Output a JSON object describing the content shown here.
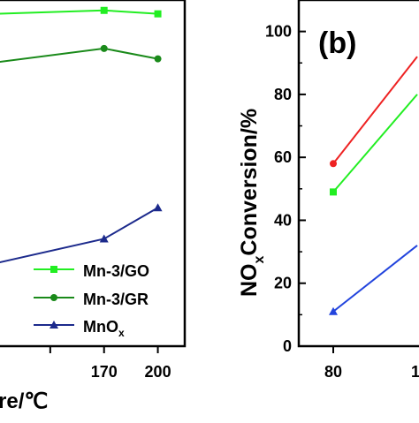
{
  "chart_data": [
    {
      "type": "line",
      "panel_label": "",
      "xlabel_visible": "re/℃",
      "ylabel": "",
      "x_ticks": [
        "170",
        "200"
      ],
      "xlim": [
        110,
        215
      ],
      "ylim": [
        0,
        100
      ],
      "series": [
        {
          "name": "Mn-3/GO",
          "color": "#22ee22",
          "marker": "square",
          "x": [
            110,
            170,
            200
          ],
          "values": [
            96,
            97,
            96
          ]
        },
        {
          "name": "Mn-3/GR",
          "color": "#1a8a1a",
          "marker": "circle",
          "x": [
            110,
            170,
            200
          ],
          "values": [
            82,
            86,
            83
          ]
        },
        {
          "name": "MnOx",
          "color": "#1c2a8c",
          "marker": "triangle",
          "x": [
            110,
            170,
            200
          ],
          "values": [
            24,
            31,
            40
          ]
        }
      ],
      "legend_placement": "bottom-right",
      "legend_labels": [
        "Mn-3/GO",
        "Mn-3/GR",
        "MnO"
      ],
      "legend_subscript": "x"
    },
    {
      "type": "line",
      "panel_label": "(b)",
      "ylabel_main": "NO",
      "ylabel_sub": "x",
      "ylabel_rest": "Conversion/%",
      "y_ticks": [
        "0",
        "20",
        "40",
        "60",
        "80",
        "100"
      ],
      "x_ticks": [
        "80"
      ],
      "x_tick_partial": "1",
      "xlim": [
        80,
        110
      ],
      "ylim": [
        0,
        110
      ],
      "series": [
        {
          "name": "red",
          "color": "#ee2222",
          "marker": "circle",
          "x": [
            80,
            90
          ],
          "values": [
            58,
            92
          ]
        },
        {
          "name": "green",
          "color": "#22ee22",
          "marker": "square",
          "x": [
            80,
            90
          ],
          "values": [
            49,
            80
          ]
        },
        {
          "name": "blue",
          "color": "#2244dd",
          "marker": "triangle",
          "x": [
            80,
            90
          ],
          "values": [
            11,
            32
          ]
        }
      ]
    }
  ]
}
